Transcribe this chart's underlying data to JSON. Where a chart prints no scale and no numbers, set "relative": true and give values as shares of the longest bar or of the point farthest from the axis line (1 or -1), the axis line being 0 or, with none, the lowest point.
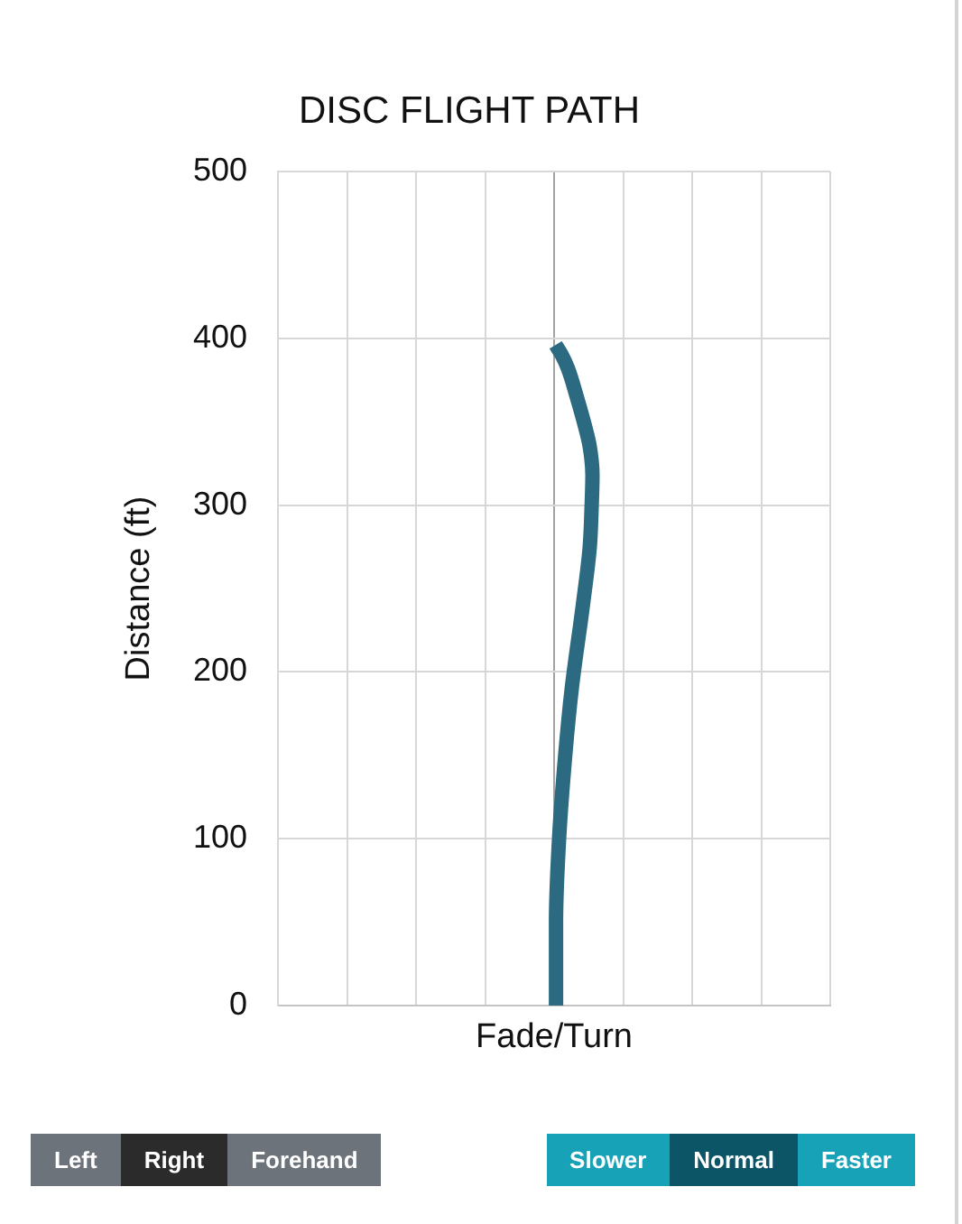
{
  "chart_data": {
    "type": "line",
    "title": "DISC FLIGHT PATH",
    "xlabel": "Fade/Turn",
    "ylabel": "Distance (ft)",
    "orientation": "horizontal",
    "relative": true,
    "x": [
      0,
      50,
      100,
      150,
      190,
      240,
      275,
      300,
      318,
      335,
      346,
      365,
      382,
      390,
      396
    ],
    "series": [
      {
        "color": "#2b6a80",
        "values": [
          0.05,
          0.05,
          0.13,
          0.29,
          0.46,
          0.75,
          0.93,
          0.98,
          1,
          0.93,
          0.82,
          0.59,
          0.36,
          0.2,
          0.04
        ]
      }
    ],
    "ylim": [
      0,
      500
    ],
    "yticks": [
      0,
      100,
      200,
      300,
      400,
      500
    ],
    "grid": true,
    "tick_labels": "y",
    "legend": false,
    "marker": "none",
    "line_style": "solid",
    "annotations": [
      "Left",
      "Right",
      "Forehand",
      "Slower",
      "Normal",
      "Faster"
    ]
  }
}
